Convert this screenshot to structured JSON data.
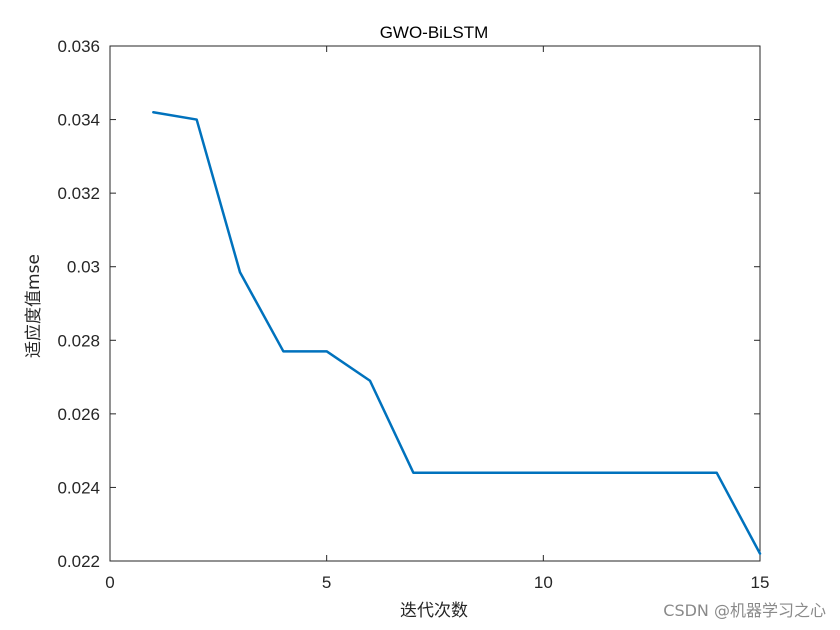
{
  "chart_data": {
    "type": "line",
    "title": "GWO-BiLSTM",
    "xlabel": "迭代次数",
    "ylabel": "适应度值mse",
    "xlim": [
      0,
      15
    ],
    "ylim": [
      0.022,
      0.036
    ],
    "xticks": [
      0,
      5,
      10,
      15
    ],
    "xtick_labels": [
      "0",
      "5",
      "10",
      "15"
    ],
    "yticks": [
      0.022,
      0.024,
      0.026,
      0.028,
      0.03,
      0.032,
      0.034,
      0.036
    ],
    "ytick_labels": [
      "0.022",
      "0.024",
      "0.026",
      "0.028",
      "0.03",
      "0.032",
      "0.034",
      "0.036"
    ],
    "grid": false,
    "x": [
      1,
      2,
      3,
      4,
      5,
      6,
      7,
      8,
      9,
      10,
      11,
      12,
      13,
      14,
      15
    ],
    "series": [
      {
        "values": [
          0.0342,
          0.034,
          0.02985,
          0.0277,
          0.0277,
          0.0269,
          0.0244,
          0.0244,
          0.0244,
          0.0244,
          0.0244,
          0.0244,
          0.0244,
          0.0244,
          0.0222
        ],
        "color": "#0072BD"
      }
    ]
  },
  "watermark": "CSDN @机器学习之心"
}
